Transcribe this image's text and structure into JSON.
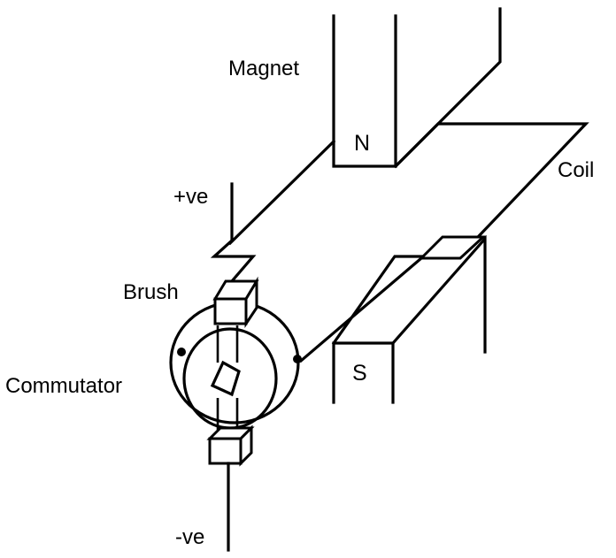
{
  "labels": {
    "magnet": "Magnet",
    "north_pole": "N",
    "coil": "Coil",
    "positive_terminal": "+ve",
    "brush": "Brush",
    "commutator": "Commutator",
    "south_pole": "S",
    "negative_terminal": "-ve"
  },
  "colors": {
    "ink": "#000000",
    "background": "#ffffff"
  }
}
